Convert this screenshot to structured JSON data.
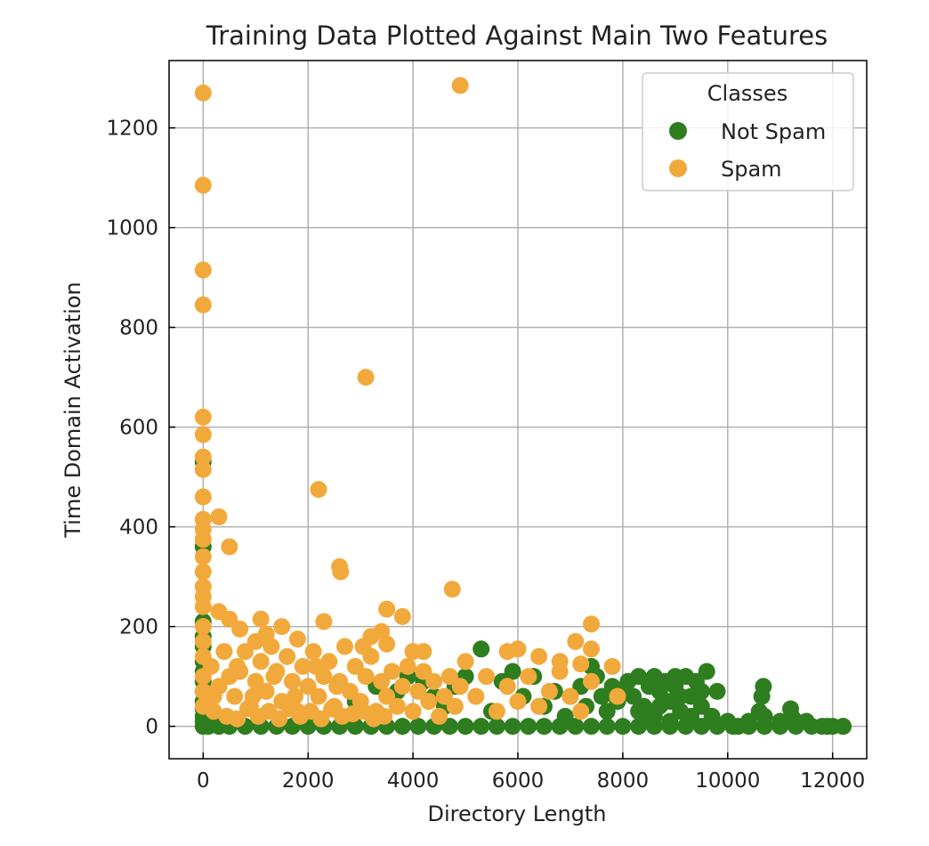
{
  "chart_data": {
    "type": "scatter",
    "title": "Training Data Plotted Against Main Two Features",
    "xlabel": "Directory Length",
    "ylabel": "Time Domain Activation",
    "xlim": [
      -650,
      12650
    ],
    "ylim": [
      -65,
      1335
    ],
    "x_ticks": [
      0,
      2000,
      4000,
      6000,
      8000,
      10000,
      12000
    ],
    "y_ticks": [
      0,
      200,
      400,
      600,
      800,
      1000,
      1200
    ],
    "grid": true,
    "legend": {
      "title": "Classes",
      "position": "top-right"
    },
    "series": [
      {
        "name": "Not Spam",
        "color": "#2e7d1f",
        "points": [
          [
            0,
            0
          ],
          [
            0,
            10
          ],
          [
            0,
            20
          ],
          [
            0,
            35
          ],
          [
            0,
            50
          ],
          [
            0,
            70
          ],
          [
            0,
            90
          ],
          [
            0,
            110
          ],
          [
            0,
            130
          ],
          [
            0,
            160
          ],
          [
            0,
            180
          ],
          [
            0,
            210
          ],
          [
            0,
            360
          ],
          [
            0,
            530
          ],
          [
            100,
            0
          ],
          [
            300,
            0
          ],
          [
            500,
            0
          ],
          [
            800,
            0
          ],
          [
            1100,
            0
          ],
          [
            1400,
            0
          ],
          [
            1700,
            0
          ],
          [
            2000,
            0
          ],
          [
            2300,
            0
          ],
          [
            2600,
            0
          ],
          [
            2900,
            0
          ],
          [
            3200,
            0
          ],
          [
            3500,
            0
          ],
          [
            3800,
            0
          ],
          [
            4100,
            0
          ],
          [
            4400,
            0
          ],
          [
            4700,
            0
          ],
          [
            5000,
            0
          ],
          [
            5300,
            0
          ],
          [
            5600,
            0
          ],
          [
            5900,
            0
          ],
          [
            6200,
            0
          ],
          [
            6500,
            0
          ],
          [
            6800,
            0
          ],
          [
            7100,
            0
          ],
          [
            7400,
            0
          ],
          [
            7700,
            0
          ],
          [
            8000,
            0
          ],
          [
            8300,
            0
          ],
          [
            8600,
            0
          ],
          [
            8900,
            0
          ],
          [
            9200,
            0
          ],
          [
            9500,
            0
          ],
          [
            9800,
            0
          ],
          [
            10100,
            0
          ],
          [
            10400,
            0
          ],
          [
            10700,
            0
          ],
          [
            11000,
            0
          ],
          [
            11300,
            0
          ],
          [
            11600,
            0
          ],
          [
            11900,
            0
          ],
          [
            12200,
            0
          ],
          [
            2900,
            50
          ],
          [
            3300,
            80
          ],
          [
            3700,
            70
          ],
          [
            3900,
            100
          ],
          [
            4200,
            90
          ],
          [
            4400,
            60
          ],
          [
            4600,
            40
          ],
          [
            4800,
            80
          ],
          [
            5000,
            100
          ],
          [
            5300,
            155
          ],
          [
            5500,
            30
          ],
          [
            5700,
            90
          ],
          [
            5900,
            110
          ],
          [
            6100,
            60
          ],
          [
            6300,
            100
          ],
          [
            6500,
            40
          ],
          [
            6700,
            70
          ],
          [
            6900,
            20
          ],
          [
            7000,
            60
          ],
          [
            7200,
            80
          ],
          [
            7300,
            40
          ],
          [
            7400,
            120
          ],
          [
            7500,
            100
          ],
          [
            7600,
            60
          ],
          [
            7700,
            30
          ],
          [
            7800,
            80
          ],
          [
            7900,
            50
          ],
          [
            8000,
            70
          ],
          [
            8100,
            90
          ],
          [
            8200,
            60
          ],
          [
            8300,
            100
          ],
          [
            8400,
            40
          ],
          [
            8500,
            80
          ],
          [
            8600,
            20
          ],
          [
            8700,
            70
          ],
          [
            8800,
            90
          ],
          [
            8900,
            50
          ],
          [
            9000,
            80
          ],
          [
            9100,
            30
          ],
          [
            9200,
            100
          ],
          [
            9300,
            60
          ],
          [
            9400,
            90
          ],
          [
            9500,
            40
          ],
          [
            9600,
            110
          ],
          [
            9700,
            20
          ],
          [
            9800,
            70
          ],
          [
            8300,
            30
          ],
          [
            8500,
            10
          ],
          [
            8700,
            40
          ],
          [
            8900,
            10
          ],
          [
            9100,
            60
          ],
          [
            9300,
            20
          ],
          [
            9500,
            70
          ],
          [
            8600,
            100
          ],
          [
            9000,
            100
          ],
          [
            10000,
            10
          ],
          [
            10200,
            0
          ],
          [
            10400,
            10
          ],
          [
            10600,
            30
          ],
          [
            10650,
            60
          ],
          [
            10680,
            80
          ],
          [
            10700,
            20
          ],
          [
            11000,
            10
          ],
          [
            11200,
            35
          ],
          [
            11250,
            15
          ],
          [
            11500,
            10
          ],
          [
            11800,
            0
          ],
          [
            12000,
            0
          ],
          [
            12200,
            0
          ]
        ]
      },
      {
        "name": "Spam",
        "color": "#f2a93b",
        "points": [
          [
            0,
            1270
          ],
          [
            0,
            1085
          ],
          [
            0,
            915
          ],
          [
            0,
            845
          ],
          [
            0,
            620
          ],
          [
            0,
            585
          ],
          [
            0,
            540
          ],
          [
            0,
            515
          ],
          [
            0,
            460
          ],
          [
            0,
            415
          ],
          [
            0,
            395
          ],
          [
            0,
            375
          ],
          [
            0,
            340
          ],
          [
            0,
            310
          ],
          [
            0,
            280
          ],
          [
            0,
            260
          ],
          [
            0,
            240
          ],
          [
            0,
            200
          ],
          [
            0,
            170
          ],
          [
            0,
            140
          ],
          [
            0,
            100
          ],
          [
            0,
            70
          ],
          [
            0,
            40
          ],
          [
            4900,
            1285
          ],
          [
            3100,
            700
          ],
          [
            2200,
            475
          ],
          [
            300,
            420
          ],
          [
            500,
            360
          ],
          [
            2600,
            320
          ],
          [
            2620,
            310
          ],
          [
            4750,
            275
          ],
          [
            3500,
            235
          ],
          [
            300,
            230
          ],
          [
            3800,
            220
          ],
          [
            500,
            215
          ],
          [
            1100,
            215
          ],
          [
            2300,
            210
          ],
          [
            7400,
            205
          ],
          [
            700,
            195
          ],
          [
            1500,
            200
          ],
          [
            3400,
            190
          ],
          [
            3200,
            180
          ],
          [
            1800,
            175
          ],
          [
            7100,
            170
          ],
          [
            3500,
            165
          ],
          [
            4000,
            150
          ],
          [
            4200,
            150
          ],
          [
            5800,
            150
          ],
          [
            6000,
            155
          ],
          [
            7400,
            155
          ],
          [
            6400,
            140
          ],
          [
            6800,
            130
          ],
          [
            7200,
            125
          ],
          [
            7800,
            120
          ],
          [
            7900,
            60
          ],
          [
            150,
            120
          ],
          [
            300,
            80
          ],
          [
            400,
            150
          ],
          [
            600,
            60
          ],
          [
            700,
            110
          ],
          [
            800,
            150
          ],
          [
            900,
            40
          ],
          [
            1000,
            90
          ],
          [
            1100,
            130
          ],
          [
            1200,
            70
          ],
          [
            1300,
            160
          ],
          [
            1400,
            110
          ],
          [
            1500,
            50
          ],
          [
            1600,
            140
          ],
          [
            1700,
            90
          ],
          [
            1800,
            30
          ],
          [
            1900,
            120
          ],
          [
            2000,
            80
          ],
          [
            2100,
            150
          ],
          [
            2200,
            60
          ],
          [
            2300,
            100
          ],
          [
            2400,
            130
          ],
          [
            2500,
            40
          ],
          [
            2600,
            90
          ],
          [
            2700,
            160
          ],
          [
            2800,
            70
          ],
          [
            2900,
            120
          ],
          [
            3000,
            50
          ],
          [
            3100,
            100
          ],
          [
            3200,
            140
          ],
          [
            3300,
            30
          ],
          [
            3400,
            90
          ],
          [
            3500,
            60
          ],
          [
            3600,
            110
          ],
          [
            3700,
            40
          ],
          [
            3800,
            80
          ],
          [
            3900,
            120
          ],
          [
            4000,
            30
          ],
          [
            4100,
            70
          ],
          [
            4200,
            110
          ],
          [
            4300,
            50
          ],
          [
            4400,
            90
          ],
          [
            4500,
            20
          ],
          [
            4600,
            60
          ],
          [
            4700,
            100
          ],
          [
            4800,
            40
          ],
          [
            4900,
            80
          ],
          [
            5000,
            130
          ],
          [
            5200,
            60
          ],
          [
            5400,
            100
          ],
          [
            5600,
            30
          ],
          [
            5800,
            80
          ],
          [
            6000,
            50
          ],
          [
            6200,
            100
          ],
          [
            6400,
            40
          ],
          [
            6600,
            70
          ],
          [
            6800,
            110
          ],
          [
            7000,
            60
          ],
          [
            7200,
            30
          ],
          [
            7400,
            90
          ],
          [
            200,
            30
          ],
          [
            450,
            20
          ],
          [
            650,
            15
          ],
          [
            850,
            35
          ],
          [
            1050,
            20
          ],
          [
            1250,
            30
          ],
          [
            1450,
            15
          ],
          [
            1650,
            35
          ],
          [
            1850,
            20
          ],
          [
            2050,
            30
          ],
          [
            2250,
            15
          ],
          [
            2450,
            35
          ],
          [
            2650,
            20
          ],
          [
            2850,
            25
          ],
          [
            3050,
            30
          ],
          [
            3250,
            15
          ],
          [
            3450,
            20
          ],
          [
            200,
            60
          ],
          [
            500,
            100
          ],
          [
            1000,
            170
          ],
          [
            1200,
            185
          ],
          [
            650,
            120
          ],
          [
            950,
            60
          ],
          [
            1350,
            100
          ],
          [
            1750,
            60
          ],
          [
            2150,
            120
          ],
          [
            2550,
            80
          ],
          [
            3050,
            160
          ]
        ]
      }
    ]
  }
}
